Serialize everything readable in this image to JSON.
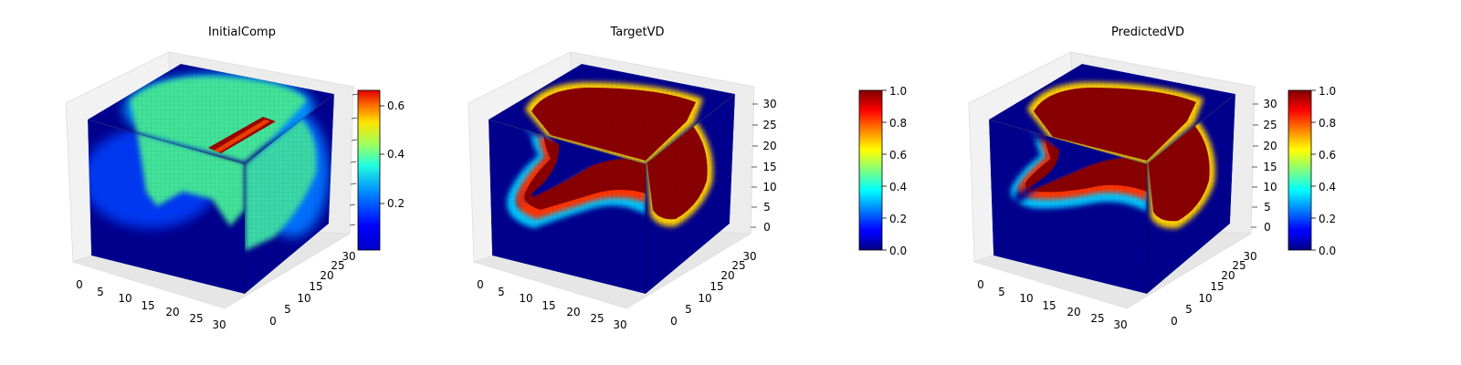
{
  "chart_data": [
    {
      "type": "3d-voxel",
      "title": "InitialComp",
      "colormap": "jet",
      "x_ticks": [
        "0",
        "5",
        "10",
        "15",
        "20",
        "25",
        "30"
      ],
      "y_ticks": [
        "0",
        "5",
        "10",
        "15",
        "20",
        "25",
        "30"
      ],
      "z_ticks": [],
      "xlim": [
        0,
        32
      ],
      "ylim": [
        0,
        32
      ],
      "zlim": [
        0,
        32
      ],
      "colorbar": {
        "range": [
          0.02,
          0.66
        ],
        "ticks": [
          "0.2",
          "0.4",
          "0.6"
        ],
        "tick_values": [
          0.2,
          0.4,
          0.6
        ]
      },
      "blob_level": 0.33,
      "bar_level": 0.66,
      "ambient_level": 0.03
    },
    {
      "type": "3d-voxel",
      "title": "TargetVD",
      "colormap": "jet",
      "x_ticks": [
        "0",
        "5",
        "10",
        "15",
        "20",
        "25",
        "30"
      ],
      "y_ticks": [
        "0",
        "5",
        "10",
        "15",
        "20",
        "25",
        "30"
      ],
      "z_ticks": [
        "0",
        "5",
        "10",
        "15",
        "20",
        "25",
        "30"
      ],
      "xlim": [
        0,
        32
      ],
      "ylim": [
        0,
        32
      ],
      "zlim": [
        0,
        32
      ],
      "colorbar": {
        "range": [
          0.0,
          1.0
        ],
        "ticks": [
          "0.0",
          "0.2",
          "0.4",
          "0.6",
          "0.8",
          "1.0"
        ],
        "tick_values": [
          0,
          0.2,
          0.4,
          0.6,
          0.8,
          1.0
        ]
      },
      "blob_level": 1.0,
      "ambient_level": 0.0
    },
    {
      "type": "3d-voxel",
      "title": "PredictedVD",
      "colormap": "jet",
      "x_ticks": [
        "0",
        "5",
        "10",
        "15",
        "20",
        "25",
        "30"
      ],
      "y_ticks": [
        "0",
        "5",
        "10",
        "15",
        "20",
        "25",
        "30"
      ],
      "z_ticks": [
        "0",
        "5",
        "10",
        "15",
        "20",
        "25",
        "30"
      ],
      "xlim": [
        0,
        32
      ],
      "ylim": [
        0,
        32
      ],
      "zlim": [
        0,
        32
      ],
      "colorbar": {
        "range": [
          0.0,
          1.0
        ],
        "ticks": [
          "0.0",
          "0.2",
          "0.4",
          "0.6",
          "0.8",
          "1.0"
        ],
        "tick_values": [
          0,
          0.2,
          0.4,
          0.6,
          0.8,
          1.0
        ]
      },
      "blob_level": 0.95,
      "ambient_level": 0.0
    }
  ]
}
